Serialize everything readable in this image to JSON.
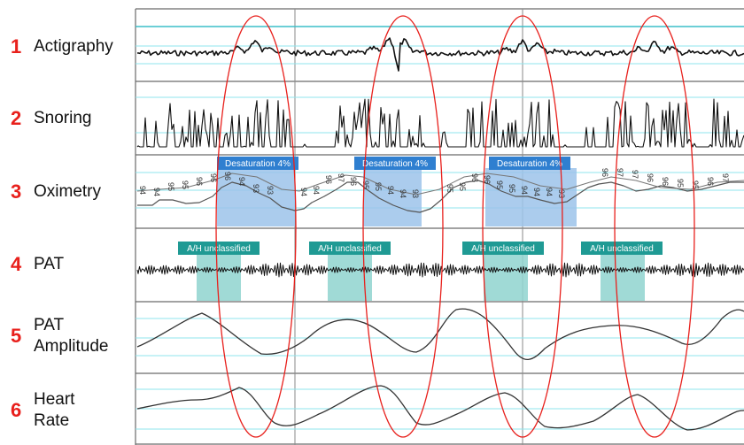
{
  "channels": [
    {
      "number": "1",
      "label": "Actigraphy"
    },
    {
      "number": "2",
      "label": "Snoring"
    },
    {
      "number": "3",
      "label": "Oximetry"
    },
    {
      "number": "4",
      "label": "PAT"
    },
    {
      "number": "5",
      "label": "PAT Amplitude"
    },
    {
      "number": "6",
      "label": "Heart Rate"
    }
  ],
  "events": {
    "desaturation_label": "Desaturation 4%",
    "ah_label": "A/H unclassified"
  },
  "oximetry_values": {
    "group1": [
      "94",
      "94",
      "95",
      "95",
      "96",
      "96",
      "96",
      "94",
      "93",
      "93"
    ],
    "group2": [
      "94",
      "94",
      "96",
      "97",
      "96",
      "95",
      "95",
      "94",
      "94",
      "93"
    ],
    "group3": [
      "95",
      "95",
      "96",
      "96",
      "95",
      "95",
      "94",
      "94",
      "94",
      "93"
    ],
    "group4": [
      "96",
      "97",
      "97",
      "96",
      "96",
      "95",
      "95",
      "96",
      "97"
    ]
  },
  "colors": {
    "highlight_ellipse": "#e8201c",
    "number_color": "#e8201c",
    "desaturation_fill": "#9cc3ea",
    "desaturation_label_bg": "#2f7fd0",
    "ah_fill": "#8fd3cf",
    "ah_label_bg": "#1f9a94",
    "grid_line": "#8fe6ee",
    "trace": "#111111"
  }
}
